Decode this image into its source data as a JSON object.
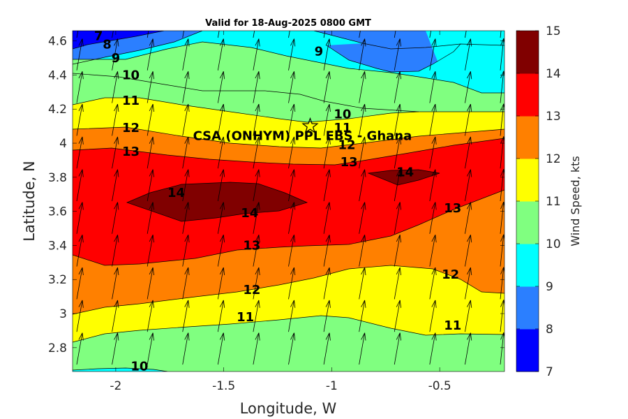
{
  "chart_data": {
    "type": "contour",
    "title": "Valid for 18-Aug-2025 0800 GMT",
    "xlabel": "Longitude, W",
    "ylabel": "Latitude, N",
    "xlim": [
      -2.2,
      -0.2
    ],
    "ylim": [
      2.66,
      4.66
    ],
    "x_ticks": [
      -2,
      -1.5,
      -1,
      -0.5
    ],
    "x_tick_labels": [
      "-2",
      "-1.5",
      "-1",
      "-0.5"
    ],
    "y_ticks": [
      2.8,
      3.0,
      3.2,
      3.4,
      3.6,
      3.8,
      4.0,
      4.2,
      4.4,
      4.6
    ],
    "y_tick_labels": [
      "2.8",
      "3",
      "3.2",
      "3.4",
      "3.6",
      "3.8",
      "4",
      "4.2",
      "4.4",
      "4.6"
    ],
    "annotation": {
      "text": "CSA (ONHYM) PPL EBS  - Ghana",
      "marker": "star",
      "lon": -1.1,
      "lat": 4.1
    },
    "colorbar": {
      "label": "Wind Speed, kts",
      "range": [
        7,
        15
      ],
      "ticks": [
        "7",
        "8",
        "9",
        "10",
        "11",
        "12",
        "13",
        "14",
        "15"
      ],
      "colors": [
        "#0000ff",
        "#2b7fff",
        "#00ffff",
        "#80ff80",
        "#ffff00",
        "#ff8000",
        "#ff0000",
        "#800000"
      ]
    },
    "bands": [
      {
        "min": 7,
        "max": 8,
        "color": "#0000ff"
      },
      {
        "min": 8,
        "max": 9,
        "color": "#2b7fff"
      },
      {
        "min": 9,
        "max": 10,
        "color": "#00ffff"
      },
      {
        "min": 10,
        "max": 11,
        "color": "#80ff80"
      },
      {
        "min": 11,
        "max": 12,
        "color": "#ffff00"
      },
      {
        "min": 12,
        "max": 13,
        "color": "#ff8000"
      },
      {
        "min": 13,
        "max": 14,
        "color": "#ff0000"
      },
      {
        "min": 14,
        "max": 15,
        "color": "#800000"
      }
    ],
    "contour_labels": [
      {
        "text": "7",
        "lon": -2.08,
        "lat": 4.63
      },
      {
        "text": "8",
        "lon": -2.04,
        "lat": 4.58
      },
      {
        "text": "9",
        "lon": -2.0,
        "lat": 4.5
      },
      {
        "text": "9",
        "lon": -1.06,
        "lat": 4.54
      },
      {
        "text": "10",
        "lon": -1.93,
        "lat": 4.4
      },
      {
        "text": "11",
        "lon": -1.93,
        "lat": 4.25
      },
      {
        "text": "10",
        "lon": -0.95,
        "lat": 4.17
      },
      {
        "text": "11",
        "lon": -0.95,
        "lat": 4.09
      },
      {
        "text": "12",
        "lon": -1.93,
        "lat": 4.09
      },
      {
        "text": "12",
        "lon": -0.93,
        "lat": 3.99
      },
      {
        "text": "13",
        "lon": -1.93,
        "lat": 3.95
      },
      {
        "text": "13",
        "lon": -0.92,
        "lat": 3.89
      },
      {
        "text": "14",
        "lon": -1.72,
        "lat": 3.71
      },
      {
        "text": "14",
        "lon": -0.66,
        "lat": 3.83
      },
      {
        "text": "14",
        "lon": -1.38,
        "lat": 3.59
      },
      {
        "text": "13",
        "lon": -0.44,
        "lat": 3.62
      },
      {
        "text": "13",
        "lon": -1.37,
        "lat": 3.4
      },
      {
        "text": "12",
        "lon": -0.45,
        "lat": 3.23
      },
      {
        "text": "12",
        "lon": -1.37,
        "lat": 3.14
      },
      {
        "text": "11",
        "lon": -1.4,
        "lat": 2.98
      },
      {
        "text": "11",
        "lon": -0.44,
        "lat": 2.93
      },
      {
        "text": "10",
        "lon": -1.89,
        "lat": 2.69
      }
    ]
  }
}
